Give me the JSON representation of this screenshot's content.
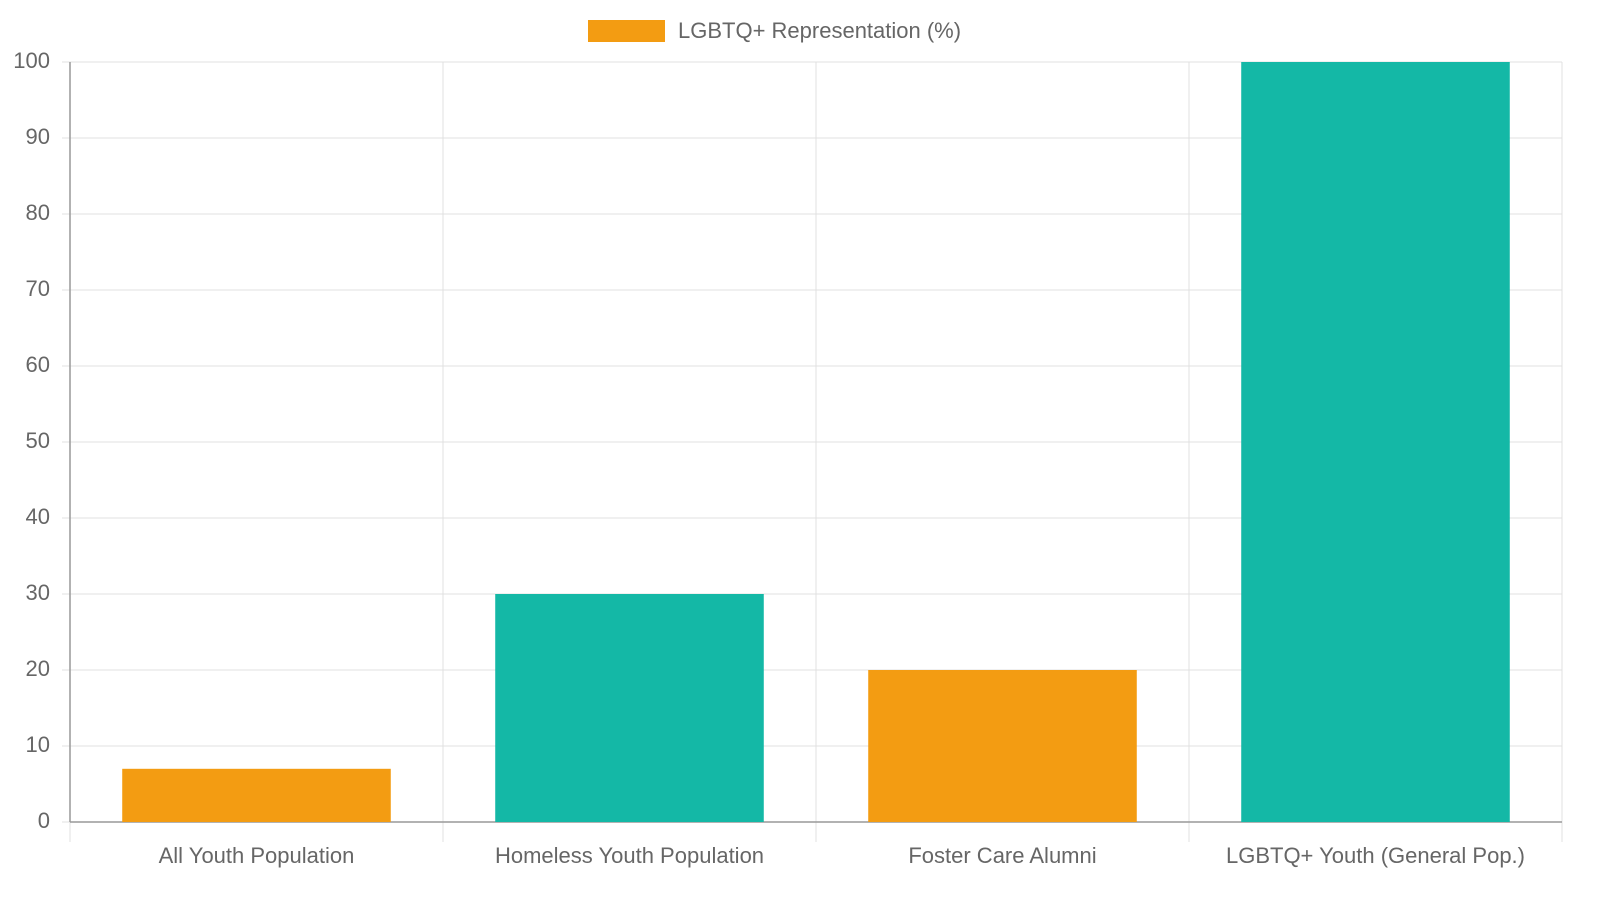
{
  "chart_data": {
    "type": "bar",
    "categories": [
      "All Youth Population",
      "Homeless Youth Population",
      "Foster Care Alumni",
      "LGBTQ+ Youth (General Pop.)"
    ],
    "series": [
      {
        "name": "LGBTQ+ Representation (%)",
        "color": "#f39c12",
        "colors": [
          "#f39c12",
          "#14b8a6",
          "#f39c12",
          "#14b8a6"
        ],
        "values": [
          7,
          30,
          20,
          100
        ]
      }
    ],
    "ylim": [
      0,
      100
    ],
    "yticks": [
      0,
      10,
      20,
      30,
      40,
      50,
      60,
      70,
      80,
      90,
      100
    ],
    "grid": true
  }
}
